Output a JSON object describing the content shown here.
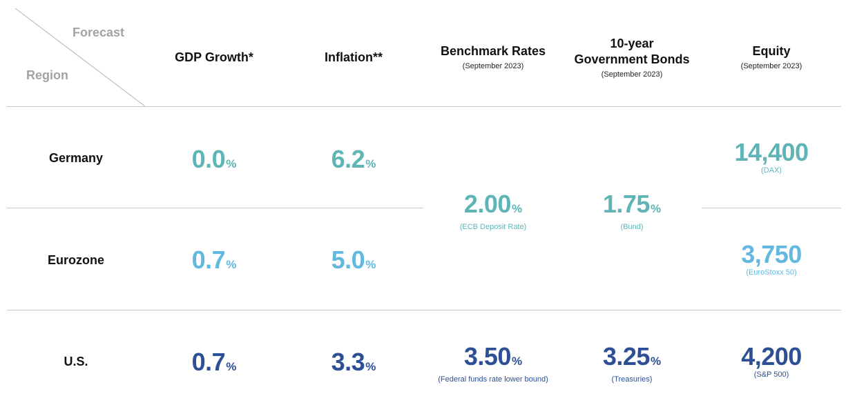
{
  "corner": {
    "forecast": "Forecast",
    "region": "Region"
  },
  "columns": {
    "gdp": {
      "label": "GDP Growth*"
    },
    "inflation": {
      "label": "Inflation**"
    },
    "rates": {
      "label": "Benchmark Rates",
      "sub": "(September 2023)"
    },
    "bonds": {
      "label_line1": "10-year",
      "label_line2": "Government Bonds",
      "sub": "(September 2023)"
    },
    "equity": {
      "label": "Equity",
      "sub": "(September 2023)"
    }
  },
  "colors": {
    "germany": "#5fb5b6",
    "eurozone": "#63b8e0",
    "us": "#2d4f95"
  },
  "pct_sign": "%",
  "rows": {
    "germany": {
      "region": "Germany",
      "gdp": "0.0",
      "inflation": "6.2",
      "equity_value": "14,400",
      "equity_note": "(DAX)"
    },
    "eurozone": {
      "region": "Eurozone",
      "gdp": "0.7",
      "inflation": "5.0",
      "equity_value": "3,750",
      "equity_note": "(EuroStoxx 50)"
    },
    "us": {
      "region": "U.S.",
      "gdp": "0.7",
      "inflation": "3.3",
      "rates_value": "3.50",
      "rates_note": "(Federal funds rate lower bound)",
      "bonds_value": "3.25",
      "bonds_note": "(Treasuries)",
      "equity_value": "4,200",
      "equity_note": "(S&P 500)"
    }
  },
  "euro_shared": {
    "rates_value": "2.00",
    "rates_note": "(ECB Deposit Rate)",
    "bonds_value": "1.75",
    "bonds_note": "(Bund)"
  }
}
